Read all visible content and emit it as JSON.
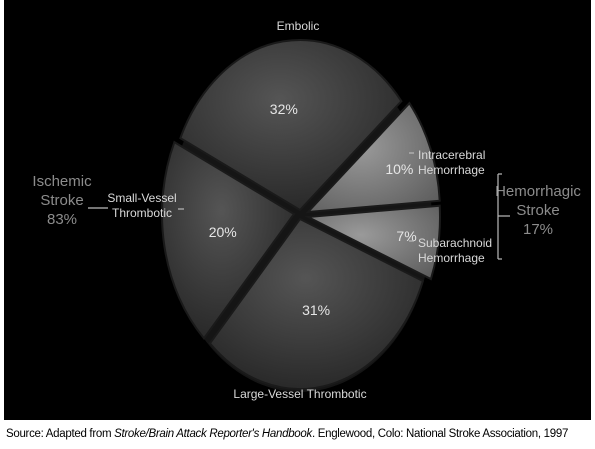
{
  "chart_data": {
    "type": "pie",
    "slices": [
      {
        "label": "Embolic",
        "value": 32,
        "value_label": "32%"
      },
      {
        "label": "Intracerebral Hemorrhage",
        "label_lines": [
          "Intracerebral",
          "Hemorrhage"
        ],
        "value": 10,
        "value_label": "10%"
      },
      {
        "label": "Subarachnoid Hemorrhage",
        "label_lines": [
          "Subarachnoid",
          "Hemorrhage"
        ],
        "value": 7,
        "value_label": "7%"
      },
      {
        "label": "Large-Vessel Thrombotic",
        "value": 31,
        "value_label": "31%"
      },
      {
        "label": "Small-Vessel Thrombotic",
        "label_lines": [
          "Small-Vessel",
          "Thrombotic"
        ],
        "value": 20,
        "value_label": "20%"
      }
    ],
    "groups": [
      {
        "lines": [
          "Ischemic",
          "Stroke",
          "83%"
        ]
      },
      {
        "lines": [
          "Hemorrhagic",
          "Stroke",
          "17%"
        ]
      }
    ],
    "colors": {
      "slice": "#3a3a3a",
      "slice_light": "#7a7a7a",
      "edge": "#1a1a1a",
      "background": "#000000"
    }
  },
  "source": {
    "prefix": "Source: Adapted from ",
    "italic": "Stroke/Brain Attack Reporter's Handbook",
    "suffix": ". Englewood, Colo: National Stroke Association, 1997"
  }
}
